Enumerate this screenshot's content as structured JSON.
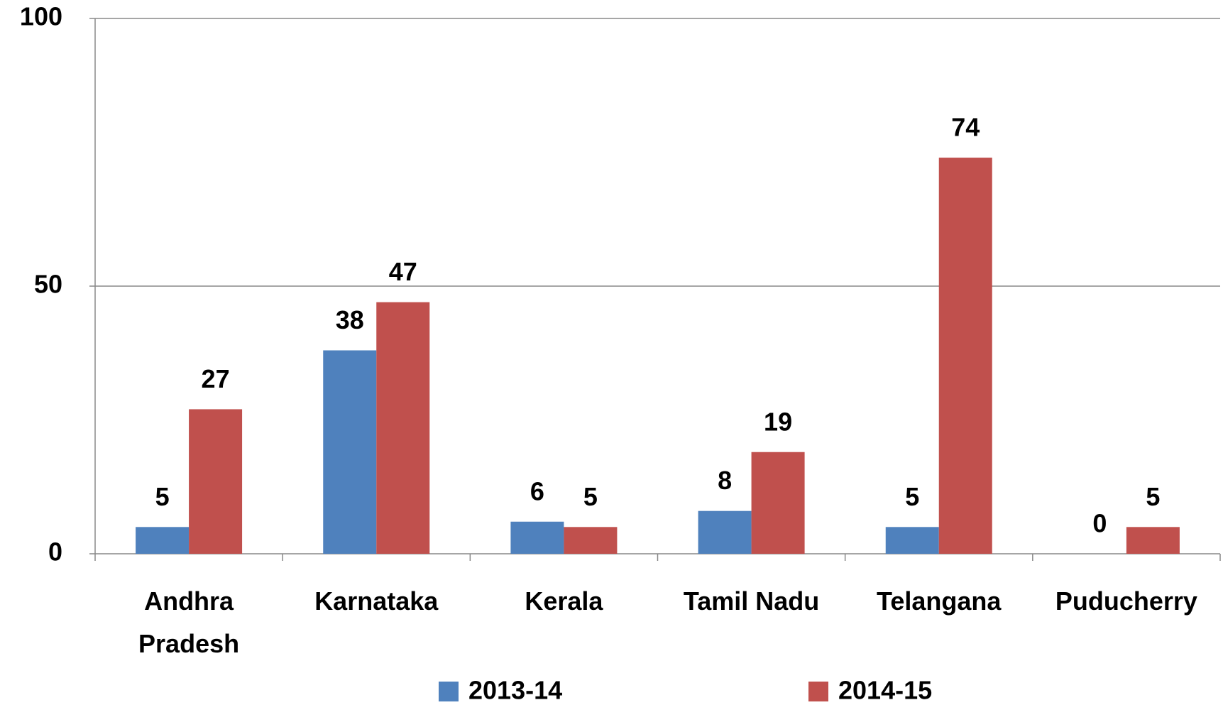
{
  "chart_data": {
    "type": "bar",
    "categories": [
      "Andhra Pradesh",
      "Karnataka",
      "Kerala",
      "Tamil Nadu",
      "Telangana",
      "Puducherry"
    ],
    "series": [
      {
        "name": "2013-14",
        "color": "#4f81bd",
        "values": [
          5,
          38,
          6,
          8,
          5,
          0
        ]
      },
      {
        "name": "2014-15",
        "color": "#c0504d",
        "values": [
          27,
          47,
          5,
          19,
          74,
          5
        ]
      }
    ],
    "ylim": [
      0,
      100
    ],
    "yticks": [
      0,
      50,
      100
    ],
    "grid": true,
    "legend": "bottom"
  }
}
